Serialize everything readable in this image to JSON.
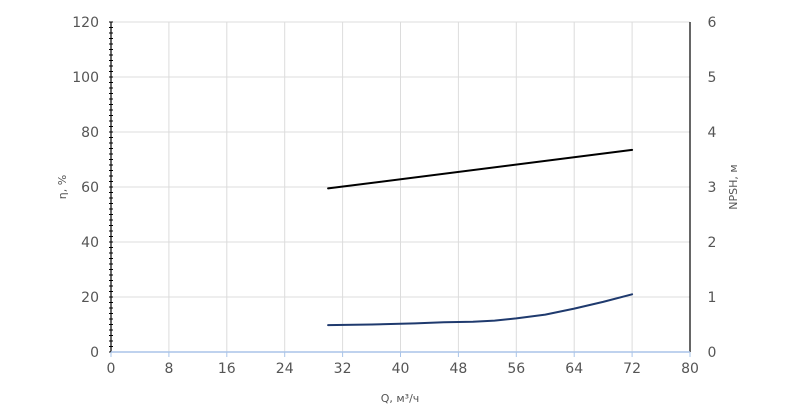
{
  "chart_data": {
    "type": "line",
    "title": "",
    "xlabel": "Q, м³/ч",
    "ylabel_left": "η, %",
    "ylabel_right": "NPSH, м",
    "x_ticks": [
      "0",
      "8",
      "16",
      "24",
      "32",
      "40",
      "48",
      "56",
      "64",
      "72",
      "80"
    ],
    "y_left_ticks": [
      "0",
      "20",
      "40",
      "60",
      "80",
      "100",
      "120"
    ],
    "y_right_ticks": [
      "0",
      "1",
      "2",
      "3",
      "4",
      "5",
      "6"
    ],
    "xlim": [
      0,
      80
    ],
    "ylim_left": [
      0,
      120
    ],
    "ylim_right": [
      0,
      6
    ],
    "grid": true,
    "series": [
      {
        "axis": "left",
        "color": "#000000",
        "x": [
          30,
          72
        ],
        "y": [
          59.5,
          73.5
        ]
      },
      {
        "axis": "right",
        "color": "#1f3a6e",
        "x": [
          30,
          36,
          42,
          46,
          50,
          53,
          56,
          60,
          64,
          68,
          72
        ],
        "y": [
          0.49,
          0.5,
          0.52,
          0.54,
          0.55,
          0.57,
          0.61,
          0.68,
          0.79,
          0.91,
          1.05
        ]
      }
    ]
  }
}
